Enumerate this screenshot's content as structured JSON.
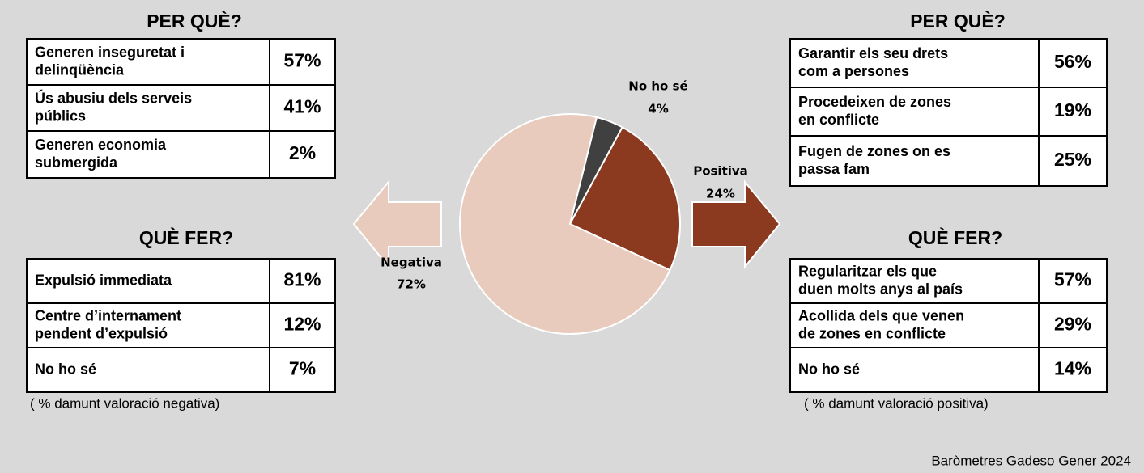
{
  "chart_data": {
    "type": "pie",
    "categories": [
      "No ho sé",
      "Positiva",
      "Negativa"
    ],
    "values": [
      4,
      24,
      72
    ],
    "value_labels": [
      "4%",
      "24%",
      "72%"
    ],
    "colors": [
      "#404040",
      "#8b3a1f",
      "#e8cbbd"
    ]
  },
  "tables": [
    {
      "title": "PER QUÈ?",
      "rows": [
        {
          "label": [
            "Generen inseguretat i",
            "delinqüència"
          ],
          "value": "57%"
        },
        {
          "label": [
            "Ús abusiu dels serveis",
            "públics"
          ],
          "value": "41%"
        },
        {
          "label": [
            "Generen economia",
            "submergida"
          ],
          "value": "2%"
        }
      ]
    },
    {
      "title": "QUÈ FER?",
      "rows": [
        {
          "label": [
            "Expulsió immediata"
          ],
          "value": "81%"
        },
        {
          "label": [
            "Centre d’internament",
            "pendent d’expulsió"
          ],
          "value": "12%"
        },
        {
          "label": [
            "No ho sé"
          ],
          "value": "7%"
        }
      ],
      "note": "( % damunt valoració negativa)"
    },
    {
      "title": "PER QUÈ?",
      "rows": [
        {
          "label": [
            "Garantir els seu drets",
            "com a persones"
          ],
          "value": "56%"
        },
        {
          "label": [
            "Procedeixen de zones",
            "en conflicte"
          ],
          "value": "19%"
        },
        {
          "label": [
            "Fugen de zones on es",
            "passa fam"
          ],
          "value": "25%"
        }
      ]
    },
    {
      "title": "QUÈ FER?",
      "rows": [
        {
          "label": [
            "Regularitzar els que",
            "duen molts anys al país"
          ],
          "value": "57%"
        },
        {
          "label": [
            "Acollida dels que venen",
            "de zones en conflicte"
          ],
          "value": "29%"
        },
        {
          "label": [
            "No ho sé"
          ],
          "value": "14%"
        }
      ],
      "note": "( % damunt valoració positiva)"
    }
  ],
  "source": "Baròmetres Gadeso Gener 2024"
}
